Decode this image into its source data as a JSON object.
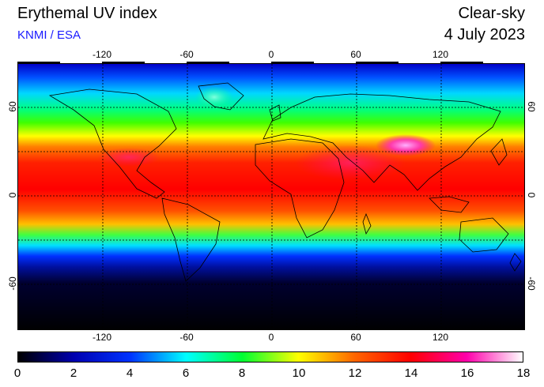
{
  "header": {
    "title": "Erythemal UV index",
    "provider": "KNMI / ESA",
    "sky_condition": "Clear-sky",
    "date": "4 July 2023"
  },
  "map": {
    "projection": "equirectangular",
    "lon_range": [
      -180,
      180
    ],
    "lat_range": [
      -90,
      90
    ],
    "grid_spacing_deg": 30,
    "grid_style": "dotted",
    "lon_tick_labels": [
      "-120",
      "-60",
      "0",
      "60",
      "120"
    ],
    "lat_tick_labels_left": [
      "60",
      "0",
      "-60"
    ],
    "lat_tick_labels_right": [
      "60",
      "0",
      "-60"
    ],
    "coastline_color": "#000000"
  },
  "colorbar": {
    "min": 0,
    "max": 18,
    "tick_labels": [
      "0",
      "2",
      "4",
      "6",
      "8",
      "10",
      "12",
      "14",
      "16",
      "18"
    ],
    "colors": [
      "#000000",
      "#0000b0",
      "#0033ff",
      "#00ffff",
      "#00ff33",
      "#ffff00",
      "#ff6600",
      "#ff0000",
      "#ff00aa",
      "#ffffff"
    ]
  }
}
